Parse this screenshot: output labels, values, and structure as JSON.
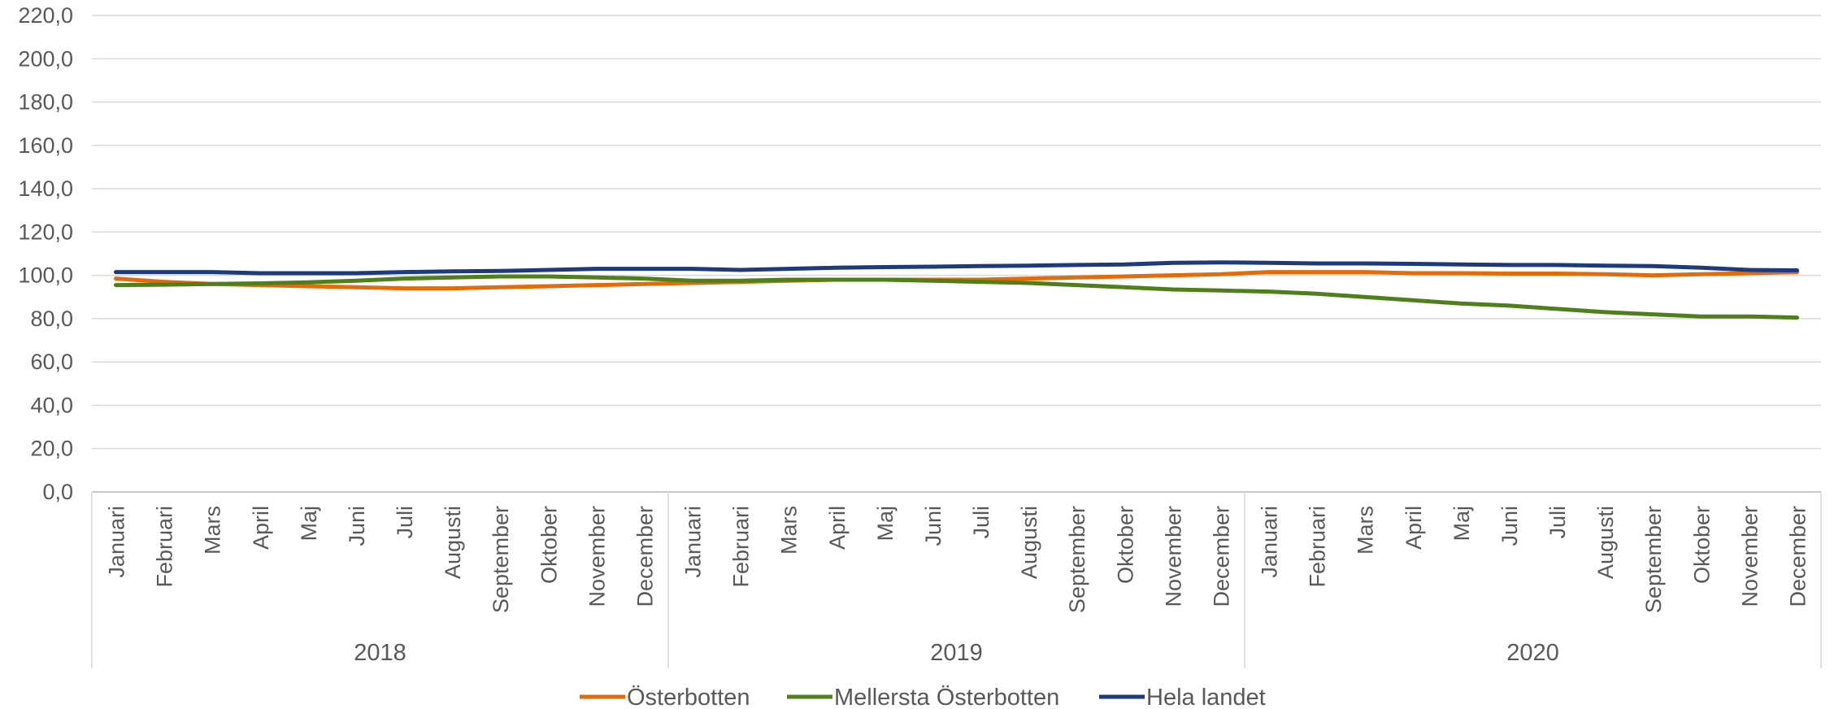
{
  "chart_data": {
    "type": "line",
    "title": "",
    "xlabel": "",
    "ylabel": "",
    "ylim": [
      0,
      220
    ],
    "yticks": [
      "0,0",
      "20,0",
      "40,0",
      "60,0",
      "80,0",
      "100,0",
      "120,0",
      "140,0",
      "160,0",
      "180,0",
      "200,0",
      "220,0"
    ],
    "grid": true,
    "legend_position": "bottom",
    "years": [
      {
        "label": "2018",
        "months": [
          "Januari",
          "Februari",
          "Mars",
          "April",
          "Maj",
          "Juni",
          "Juli",
          "Augusti",
          "September",
          "Oktober",
          "November",
          "December"
        ]
      },
      {
        "label": "2019",
        "months": [
          "Januari",
          "Februari",
          "Mars",
          "April",
          "Maj",
          "Juni",
          "Juli",
          "Augusti",
          "September",
          "Oktober",
          "November",
          "December"
        ]
      },
      {
        "label": "2020",
        "months": [
          "Januari",
          "Februari",
          "Mars",
          "April",
          "Maj",
          "Juni",
          "Juli",
          "Augusti",
          "September",
          "Oktober",
          "November",
          "December"
        ]
      }
    ],
    "series": [
      {
        "name": "Österbotten",
        "color": "#E36C0A",
        "values": [
          98.5,
          97.0,
          96.0,
          95.5,
          95.0,
          94.5,
          94.0,
          94.0,
          94.5,
          95.0,
          95.5,
          96.0,
          96.5,
          97.0,
          97.5,
          98.0,
          98.0,
          98.0,
          98.0,
          98.5,
          99.0,
          99.5,
          100.0,
          100.5,
          101.5,
          101.5,
          101.5,
          101.0,
          101.0,
          100.8,
          100.8,
          100.5,
          100.0,
          100.5,
          101.0,
          101.5
        ]
      },
      {
        "name": "Mellersta Österbotten",
        "color": "#4F7F1B",
        "values": [
          95.5,
          95.7,
          96.0,
          96.3,
          96.8,
          97.5,
          98.5,
          99.0,
          99.5,
          99.5,
          99.0,
          98.5,
          97.5,
          97.5,
          98.0,
          98.0,
          98.0,
          97.5,
          97.0,
          96.5,
          95.5,
          94.5,
          93.5,
          93.0,
          92.5,
          91.5,
          90.0,
          88.5,
          87.0,
          86.0,
          84.5,
          83.0,
          82.0,
          81.0,
          81.0,
          80.5
        ]
      },
      {
        "name": "Hela landet",
        "color": "#1F3A7A",
        "values": [
          101.5,
          101.5,
          101.5,
          101.0,
          101.0,
          101.0,
          101.5,
          101.8,
          102.0,
          102.5,
          103.0,
          103.0,
          103.0,
          102.5,
          103.0,
          103.5,
          103.8,
          104.0,
          104.3,
          104.5,
          104.8,
          105.0,
          105.8,
          106.0,
          105.8,
          105.5,
          105.5,
          105.3,
          105.0,
          104.8,
          104.8,
          104.5,
          104.3,
          103.5,
          102.5,
          102.3
        ]
      }
    ]
  }
}
